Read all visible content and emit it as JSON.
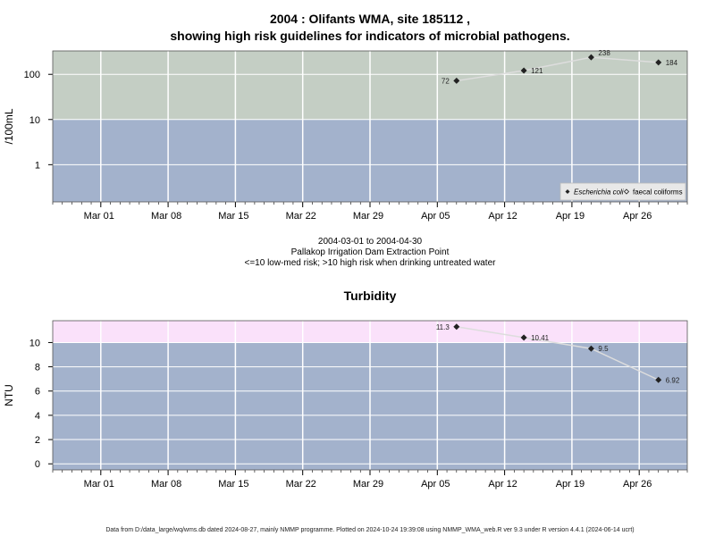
{
  "figure": {
    "title_line1": "2004 : Olifants WMA, site 185112 ,",
    "title_line2": "showing high risk guidelines for indicators of microbial pathogens.",
    "date_range": "2004-03-01 to 2004-04-30",
    "site_name": "Pallakop Irrigation Dam Extraction Point",
    "risk_note": "<=10 low-med risk; >10 high risk when drinking untreated water",
    "footer": "Data from D:/data_large/wq/wms.db dated 2024-08-27, mainly NMMP programme. Plotted on 2024-10-24 19:39:08 using NMMP_WMA_web.R ver 9.3 under R version 4.4.1 (2024-06-14 ucrt)"
  },
  "colors": {
    "low_band": "#a3b2cc",
    "high_band_micro": "#c4cec4",
    "high_band_turb": "#fae1fa",
    "grid": "#ffffff",
    "line": "#dddddd",
    "marker": "#222222"
  },
  "chart_data": [
    {
      "type": "scatter",
      "title": "",
      "ylabel": "/100mL",
      "yscale": "log",
      "ylim": [
        0.15,
        330
      ],
      "xlim": [
        "2004-02-25",
        "2004-05-01"
      ],
      "x_ticks": [
        "Mar 01",
        "Mar 08",
        "Mar 15",
        "Mar 22",
        "Mar 29",
        "Apr 05",
        "Apr 12",
        "Apr 19",
        "Apr 26"
      ],
      "y_ticks": [
        "1",
        "10",
        "100"
      ],
      "threshold": 10,
      "legend": {
        "position": "bottom-right",
        "entries": [
          "Escherichia coli",
          "faecal coliforms"
        ]
      },
      "series": [
        {
          "name": "Escherichia coli",
          "x": [
            "2004-04-07",
            "2004-04-14",
            "2004-04-21",
            "2004-04-28"
          ],
          "y": [
            72,
            121,
            238,
            184
          ],
          "labels": [
            "72",
            "121",
            "238",
            "184"
          ]
        }
      ]
    },
    {
      "type": "scatter",
      "title": "Turbidity",
      "ylabel": "NTU",
      "yscale": "linear",
      "ylim": [
        -0.5,
        11.8
      ],
      "xlim": [
        "2004-02-25",
        "2004-05-01"
      ],
      "x_ticks": [
        "Mar 01",
        "Mar 08",
        "Mar 15",
        "Mar 22",
        "Mar 29",
        "Apr 05",
        "Apr 12",
        "Apr 19",
        "Apr 26"
      ],
      "y_ticks": [
        "0",
        "2",
        "4",
        "6",
        "8",
        "10"
      ],
      "threshold": 10,
      "series": [
        {
          "x": [
            "2004-04-07",
            "2004-04-14",
            "2004-04-21",
            "2004-04-28"
          ],
          "y": [
            11.3,
            10.41,
            9.5,
            6.92
          ],
          "labels": [
            "11.3",
            "10.41",
            "9.5",
            "6.92"
          ]
        }
      ]
    }
  ]
}
